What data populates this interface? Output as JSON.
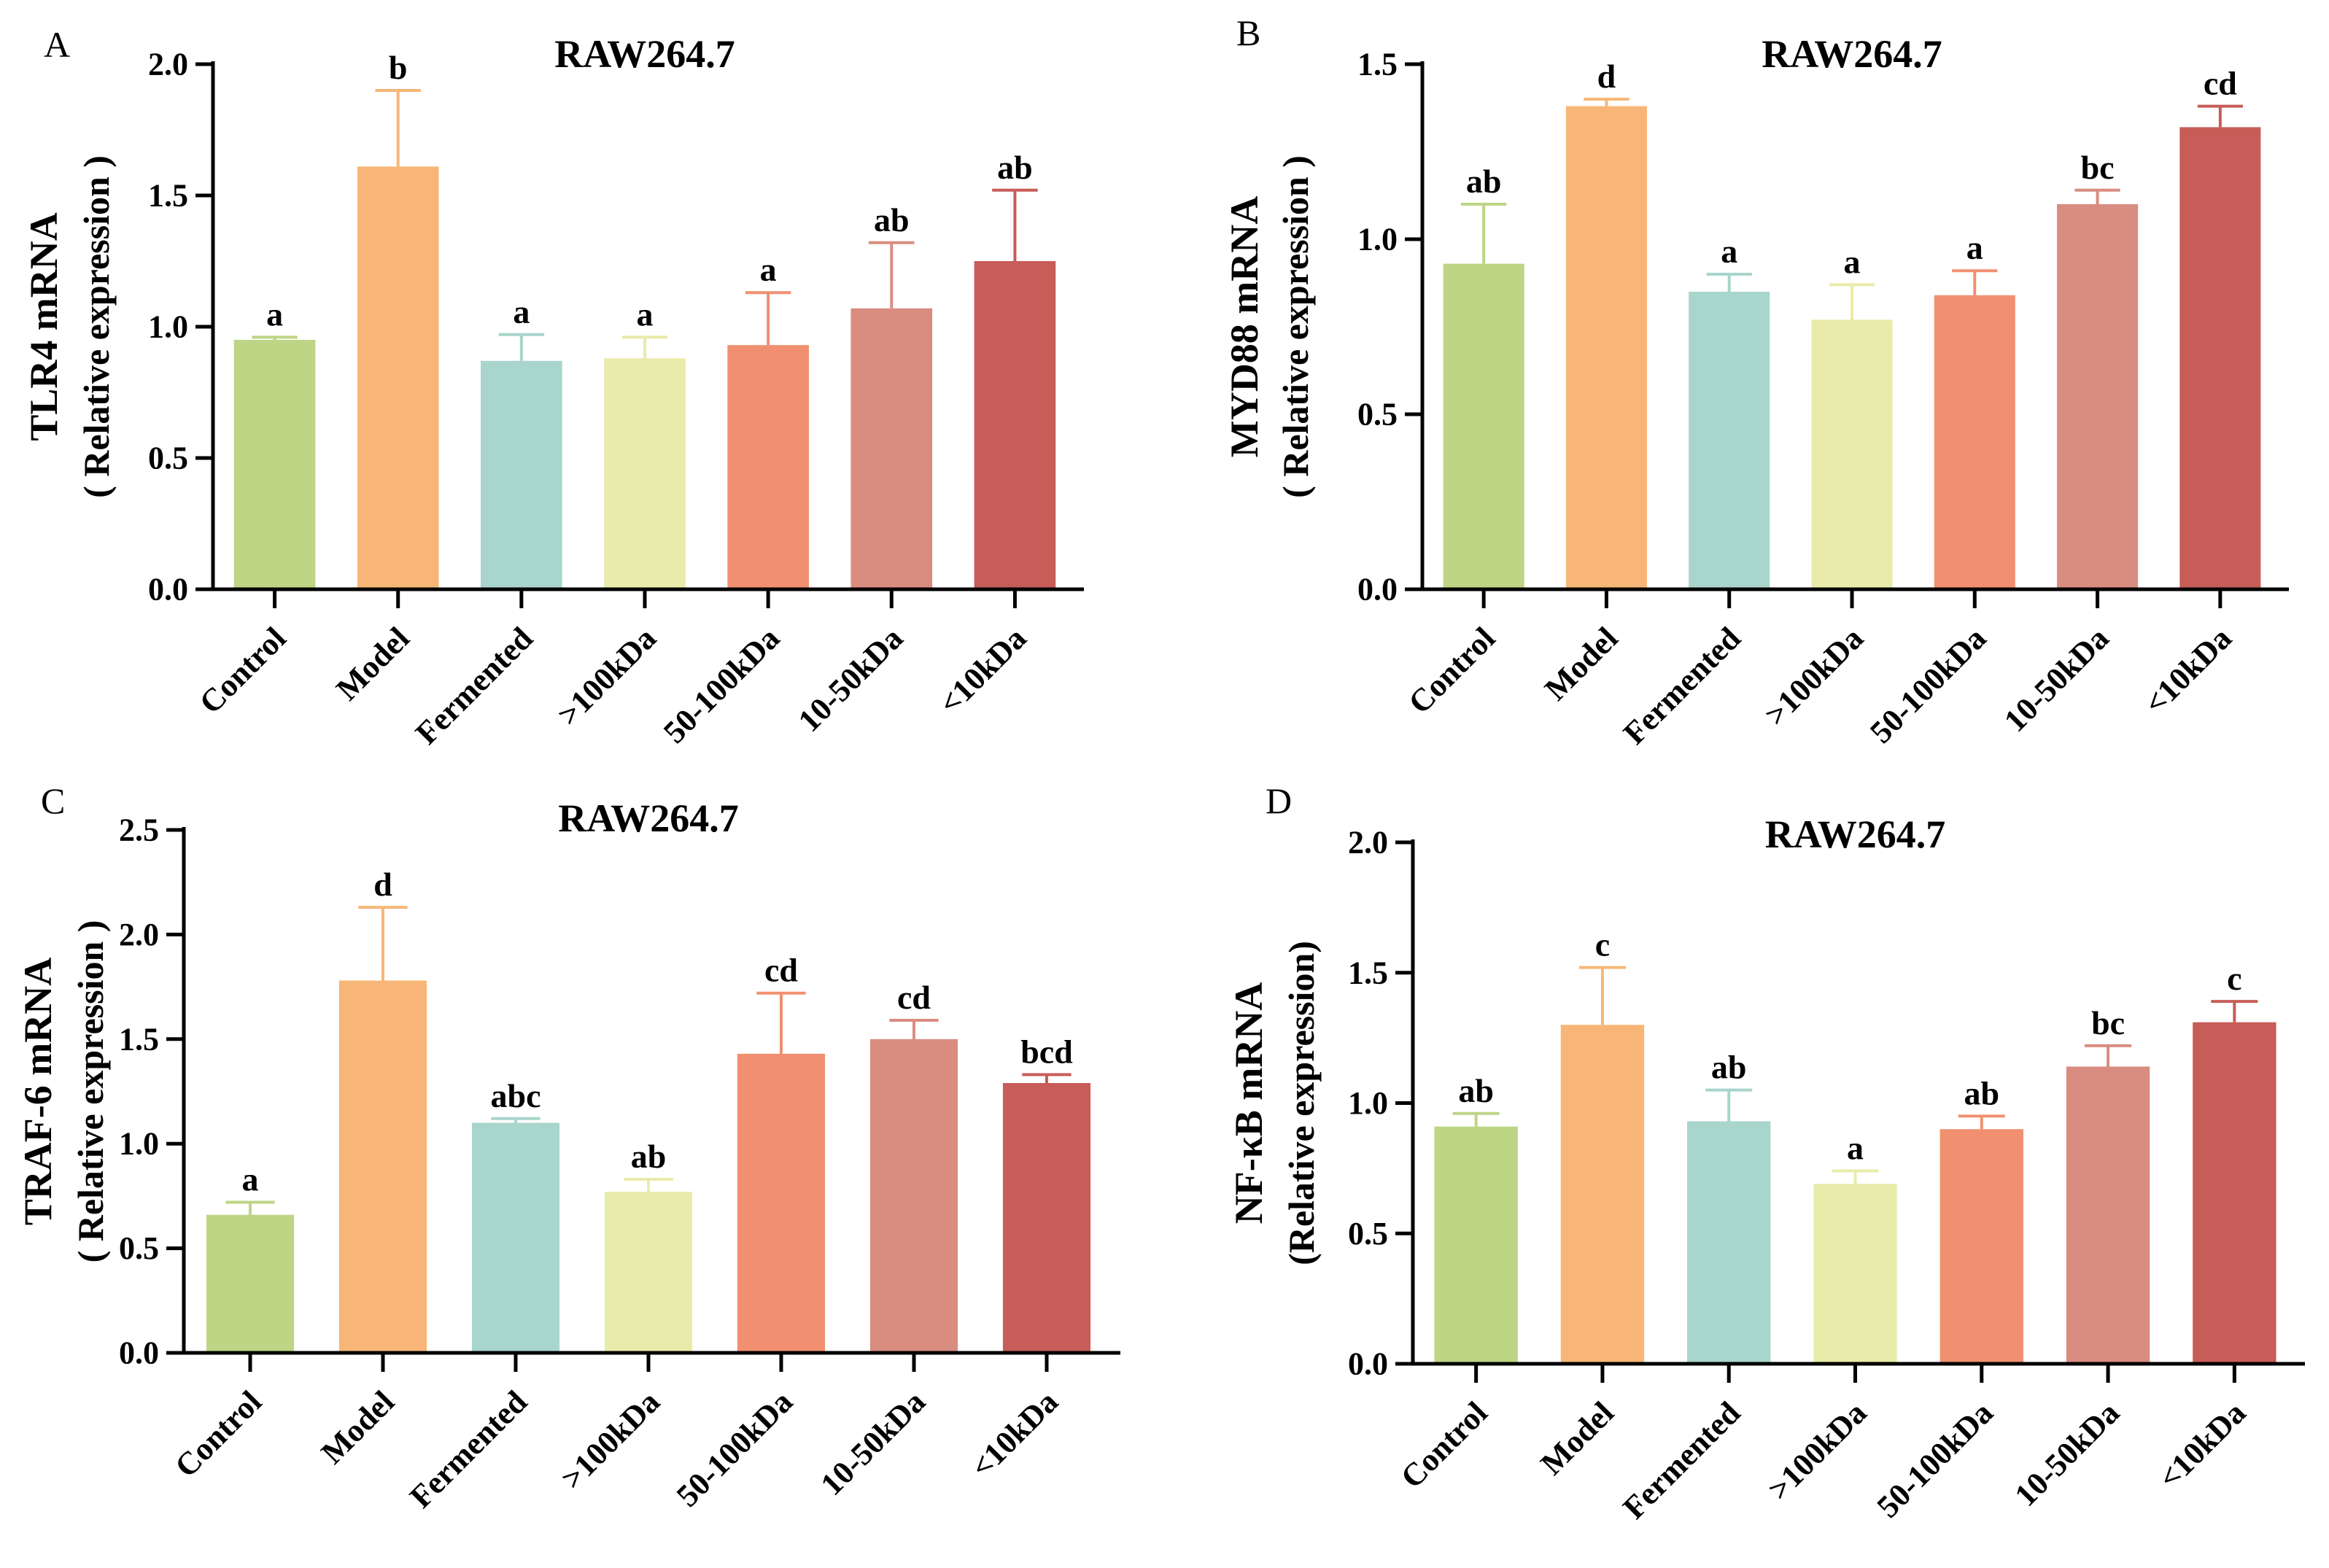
{
  "figure": {
    "cell_line": "RAW264.7",
    "categories": [
      "Control",
      "Model",
      "Fermented",
      ">100kDa",
      "50-100kDa",
      "10-50kDa",
      "<10kDa"
    ],
    "bar_colors": [
      "#bdd585",
      "#f7b677",
      "#a8d5cc",
      "#e9ebaa",
      "#f09070",
      "#d98c80",
      "#c85c58"
    ]
  },
  "chart_data": [
    {
      "panel_letter": "A",
      "type": "bar",
      "title": "RAW264.7",
      "ylabel_line1": "TLR4 mRNA",
      "ylabel_line2": "( Relative expression )",
      "ylim": [
        0,
        2.0
      ],
      "ticks": [
        0.0,
        0.5,
        1.0,
        1.5,
        2.0
      ],
      "tick_labels": [
        "0.0",
        "0.5",
        "1.0",
        "1.5",
        "2.0"
      ],
      "categories": [
        "Control",
        "Model",
        "Fermented",
        ">100kDa",
        "50-100kDa",
        "10-50kDa",
        "<10kDa"
      ],
      "values": [
        0.95,
        1.61,
        0.87,
        0.88,
        0.93,
        1.07,
        1.25
      ],
      "errors": [
        0.01,
        0.29,
        0.1,
        0.08,
        0.2,
        0.25,
        0.27
      ],
      "letters": [
        "a",
        "b",
        "a",
        "a",
        "a",
        "ab",
        "ab"
      ]
    },
    {
      "panel_letter": "B",
      "type": "bar",
      "title": "RAW264.7",
      "ylabel_line1": "MYD88 mRNA",
      "ylabel_line2": "( Relative expression )",
      "ylim": [
        0,
        1.5
      ],
      "ticks": [
        0.0,
        0.5,
        1.0,
        1.5
      ],
      "tick_labels": [
        "0.0",
        "0.5",
        "1.0",
        "1.5"
      ],
      "categories": [
        "Control",
        "Model",
        "Fermented",
        ">100kDa",
        "50-100kDa",
        "10-50kDa",
        "<10kDa"
      ],
      "values": [
        0.93,
        1.38,
        0.85,
        0.77,
        0.84,
        1.1,
        1.32
      ],
      "errors": [
        0.17,
        0.02,
        0.05,
        0.1,
        0.07,
        0.04,
        0.06
      ],
      "letters": [
        "ab",
        "d",
        "a",
        "a",
        "a",
        "bc",
        "cd"
      ]
    },
    {
      "panel_letter": "C",
      "type": "bar",
      "title": "RAW264.7",
      "ylabel_line1": "TRAF-6 mRNA",
      "ylabel_line2": "( Relative expression )",
      "ylim": [
        0,
        2.5
      ],
      "ticks": [
        0.0,
        0.5,
        1.0,
        1.5,
        2.0,
        2.5
      ],
      "tick_labels": [
        "0.0",
        "0.5",
        "1.0",
        "1.5",
        "2.0",
        "2.5"
      ],
      "categories": [
        "Control",
        "Model",
        "Fermented",
        ">100kDa",
        "50-100kDa",
        "10-50kDa",
        "<10kDa"
      ],
      "values": [
        0.66,
        1.78,
        1.1,
        0.77,
        1.43,
        1.5,
        1.29
      ],
      "errors": [
        0.06,
        0.35,
        0.02,
        0.06,
        0.29,
        0.09,
        0.04
      ],
      "letters": [
        "a",
        "d",
        "abc",
        "ab",
        "cd",
        "cd",
        "bcd"
      ]
    },
    {
      "panel_letter": "D",
      "type": "bar",
      "title": "RAW264.7",
      "ylabel_line1": "NF-κB mRNA",
      "ylabel_line2": "(Relative expression)",
      "ylim": [
        0,
        2.0
      ],
      "ticks": [
        0.0,
        0.5,
        1.0,
        1.5,
        2.0
      ],
      "tick_labels": [
        "0.0",
        "0.5",
        "1.0",
        "1.5",
        "2.0"
      ],
      "categories": [
        "Control",
        "Model",
        "Fermented",
        ">100kDa",
        "50-100kDa",
        "10-50kDa",
        "<10kDa"
      ],
      "values": [
        0.91,
        1.3,
        0.93,
        0.69,
        0.9,
        1.14,
        1.31
      ],
      "errors": [
        0.05,
        0.22,
        0.12,
        0.05,
        0.05,
        0.08,
        0.08
      ],
      "letters": [
        "ab",
        "c",
        "ab",
        "a",
        "ab",
        "bc",
        "c"
      ]
    }
  ]
}
